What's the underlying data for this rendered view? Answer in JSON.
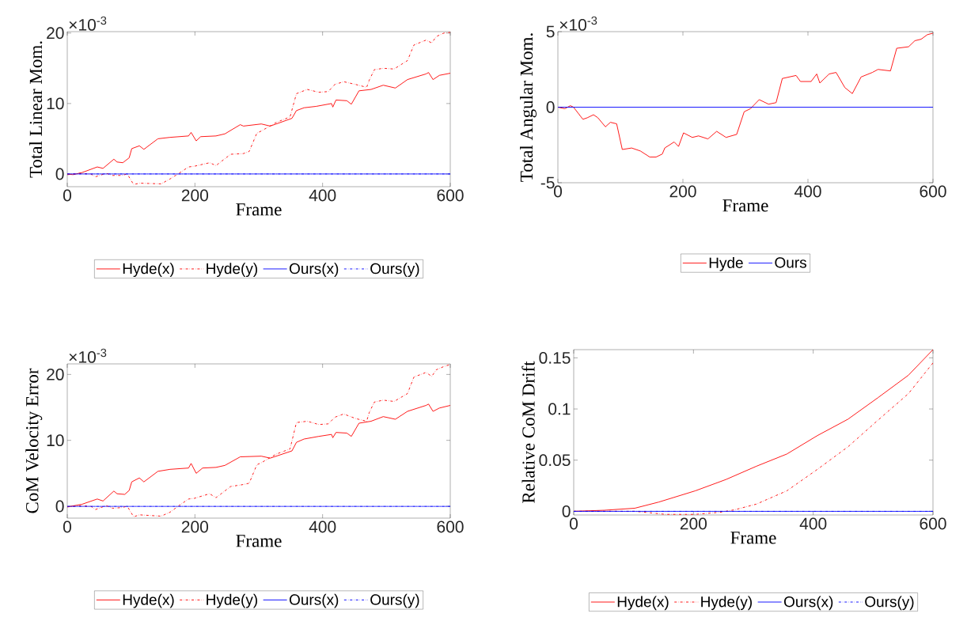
{
  "chart_data": [
    {
      "type": "line",
      "xlabel": "Frame",
      "ylabel": "Total Linear Mom.",
      "annotations": [
        "×10$^{-3}$"
      ],
      "xlim": [
        0,
        600
      ],
      "xticks": [
        0,
        200,
        400,
        600
      ],
      "ylim": [
        -1.8,
        20.2
      ],
      "yticks": [
        0,
        10,
        20
      ],
      "legend": "bottom",
      "grid": false,
      "marker": "none",
      "series": [
        {
          "name": "Hyde(x)",
          "color": "#ff0000",
          "line_style": "solid",
          "x": [
            0,
            9,
            23,
            47,
            56,
            73,
            78,
            87,
            97,
            101,
            113,
            120,
            142,
            161,
            190,
            194,
            202,
            209,
            233,
            247,
            271,
            276,
            304,
            318,
            352,
            359,
            371,
            390,
            414,
            416,
            421,
            438,
            445,
            457,
            476,
            495,
            514,
            533,
            562,
            566,
            573,
            583,
            600
          ],
          "values": [
            0,
            -0.1,
            0.2,
            1.0,
            0.8,
            2.1,
            1.7,
            1.6,
            2.3,
            3.6,
            4.0,
            3.5,
            5.0,
            5.2,
            5.4,
            5.9,
            4.7,
            5.3,
            5.4,
            5.7,
            7.0,
            6.8,
            7.1,
            6.8,
            7.9,
            9.0,
            9.4,
            9.6,
            10.0,
            9.5,
            10.5,
            10.4,
            9.9,
            11.8,
            12.0,
            12.6,
            12.2,
            13.4,
            14.2,
            14.4,
            13.4,
            14.0,
            14.3
          ]
        },
        {
          "name": "Hyde(y)",
          "color": "#ff0000",
          "line_style": "dashdot",
          "x": [
            0,
            18,
            37,
            44,
            61,
            71,
            85,
            94,
            104,
            113,
            147,
            161,
            175,
            190,
            199,
            223,
            233,
            256,
            276,
            285,
            297,
            304,
            327,
            349,
            359,
            376,
            394,
            409,
            419,
            433,
            452,
            469,
            473,
            481,
            495,
            512,
            533,
            543,
            562,
            571,
            578,
            590,
            600
          ],
          "values": [
            -0.1,
            0.1,
            0.0,
            -0.4,
            0.1,
            -0.2,
            -0.2,
            0.0,
            -1.5,
            -1.3,
            -1.4,
            -0.7,
            0.1,
            1.0,
            1.1,
            1.6,
            1.2,
            2.8,
            2.9,
            3.2,
            5.8,
            6.1,
            7.3,
            8.1,
            11.4,
            12.0,
            11.6,
            11.7,
            12.7,
            13.1,
            12.7,
            12.3,
            13.3,
            14.8,
            15.0,
            14.9,
            16.1,
            18.3,
            19.0,
            18.6,
            19.5,
            20.0,
            20.1
          ]
        },
        {
          "name": "Ours(x)",
          "color": "#0000ff",
          "line_style": "solid",
          "x": [
            0,
            600
          ],
          "values": [
            0,
            0
          ]
        },
        {
          "name": "Ours(y)",
          "color": "#0000ff",
          "line_style": "dashdot",
          "x": [
            0,
            600
          ],
          "values": [
            0,
            0
          ]
        }
      ]
    },
    {
      "type": "line",
      "xlabel": "Frame",
      "ylabel": "Total Angular Mom.",
      "annotations": [
        "×10$^{-3}$"
      ],
      "xlim": [
        0,
        600
      ],
      "xticks": [
        0,
        200,
        400,
        600
      ],
      "ylim": [
        -5,
        5
      ],
      "yticks": [
        -5,
        0,
        5
      ],
      "legend": "bottom",
      "grid": false,
      "marker": "none",
      "series": [
        {
          "name": "Hyde",
          "color": "#ff0000",
          "line_style": "solid",
          "x": [
            0,
            11,
            20,
            25,
            40,
            47,
            57,
            64,
            76,
            84,
            94,
            103,
            118,
            132,
            147,
            157,
            167,
            171,
            186,
            193,
            201,
            215,
            225,
            240,
            254,
            269,
            286,
            298,
            308,
            322,
            337,
            349,
            359,
            381,
            388,
            405,
            414,
            419,
            434,
            445,
            459,
            471,
            485,
            503,
            512,
            532,
            542,
            561,
            571,
            581,
            591,
            600
          ],
          "values": [
            0,
            -0.1,
            0.1,
            0,
            -0.8,
            -0.7,
            -0.5,
            -0.7,
            -1.3,
            -1.0,
            -1.1,
            -2.8,
            -2.7,
            -2.9,
            -3.3,
            -3.3,
            -3.1,
            -2.7,
            -2.3,
            -2.6,
            -1.7,
            -2.0,
            -1.9,
            -2.1,
            -1.6,
            -2.0,
            -1.8,
            -0.3,
            -0.1,
            0.5,
            0.2,
            0.3,
            1.9,
            2.1,
            1.7,
            1.7,
            2.2,
            1.6,
            2.2,
            2.3,
            1.3,
            0.9,
            2.0,
            2.3,
            2.5,
            2.4,
            3.9,
            4.0,
            4.4,
            4.5,
            4.8,
            4.9
          ]
        },
        {
          "name": "Ours",
          "color": "#0000ff",
          "line_style": "solid",
          "x": [
            0,
            600
          ],
          "values": [
            0,
            0
          ]
        }
      ]
    },
    {
      "type": "line",
      "xlabel": "Frame",
      "ylabel": "CoM Velocity Error",
      "annotations": [
        "×10$^{-3}$"
      ],
      "xlim": [
        0,
        600
      ],
      "xticks": [
        0,
        200,
        400,
        600
      ],
      "ylim": [
        -1.8,
        21.6
      ],
      "yticks": [
        0,
        10,
        20
      ],
      "legend": "bottom",
      "grid": false,
      "marker": "none",
      "series": [
        {
          "name": "Hyde(x)",
          "color": "#ff0000",
          "line_style": "solid",
          "x": [
            0,
            23,
            47,
            56,
            73,
            78,
            90,
            97,
            101,
            113,
            120,
            142,
            161,
            190,
            194,
            202,
            212,
            233,
            247,
            271,
            304,
            318,
            352,
            359,
            371,
            394,
            414,
            416,
            421,
            438,
            445,
            457,
            476,
            495,
            514,
            533,
            562,
            566,
            573,
            583,
            600
          ],
          "values": [
            -0.1,
            0.3,
            1.1,
            0.8,
            2.3,
            1.9,
            1.8,
            2.4,
            3.7,
            4.3,
            3.7,
            5.3,
            5.6,
            5.8,
            6.5,
            5.0,
            5.8,
            5.9,
            6.2,
            7.5,
            7.6,
            7.3,
            8.4,
            9.7,
            10.2,
            10.6,
            10.9,
            10.4,
            11.2,
            11.1,
            10.6,
            12.6,
            12.9,
            13.6,
            13.2,
            14.4,
            15.3,
            15.5,
            14.4,
            14.9,
            15.3
          ]
        },
        {
          "name": "Hyde(y)",
          "color": "#ff0000",
          "line_style": "dashdot",
          "x": [
            0,
            18,
            37,
            44,
            61,
            71,
            85,
            94,
            104,
            113,
            147,
            161,
            175,
            190,
            199,
            223,
            233,
            256,
            276,
            285,
            297,
            304,
            327,
            349,
            359,
            376,
            394,
            409,
            419,
            433,
            452,
            469,
            473,
            481,
            495,
            512,
            533,
            543,
            562,
            571,
            578,
            590,
            600
          ],
          "values": [
            -0.1,
            0.1,
            0.0,
            -0.5,
            0.1,
            -0.3,
            -0.2,
            0.0,
            -1.6,
            -1.3,
            -1.5,
            -0.9,
            0.1,
            1.1,
            1.2,
            1.9,
            1.3,
            3.0,
            3.3,
            3.5,
            6.3,
            6.6,
            7.9,
            8.7,
            12.7,
            12.9,
            12.4,
            12.5,
            13.5,
            14.0,
            13.3,
            12.9,
            14.2,
            15.8,
            16.1,
            15.9,
            17.1,
            19.6,
            20.3,
            19.7,
            20.7,
            21.2,
            21.5
          ]
        },
        {
          "name": "Ours(x)",
          "color": "#0000ff",
          "line_style": "solid",
          "x": [
            0,
            600
          ],
          "values": [
            0,
            0
          ]
        },
        {
          "name": "Ours(y)",
          "color": "#0000ff",
          "line_style": "dashdot",
          "x": [
            0,
            600
          ],
          "values": [
            0,
            0
          ]
        }
      ]
    },
    {
      "type": "line",
      "xlabel": "Frame",
      "ylabel": "Relative CoM Drift",
      "xlim": [
        0,
        600
      ],
      "xticks": [
        0,
        200,
        400,
        600
      ],
      "ylim": [
        -0.0036,
        0.158
      ],
      "yticks": [
        0,
        0.05,
        0.1,
        0.15
      ],
      "legend": "bottom",
      "grid": false,
      "marker": "none",
      "series": [
        {
          "name": "Hyde(x)",
          "color": "#ff0000",
          "line_style": "solid",
          "x": [
            0,
            51,
            102,
            142,
            203,
            254,
            305,
            356,
            407,
            458,
            508,
            559,
            600
          ],
          "values": [
            0,
            0.001,
            0.003,
            0.009,
            0.02,
            0.031,
            0.044,
            0.056,
            0.074,
            0.09,
            0.111,
            0.133,
            0.158
          ]
        },
        {
          "name": "Hyde(y)",
          "color": "#ff0000",
          "line_style": "dashdot",
          "x": [
            0,
            102,
            153,
            203,
            244,
            269,
            305,
            356,
            407,
            458,
            508,
            559,
            600
          ],
          "values": [
            0,
            0,
            -0.003,
            -0.003,
            -0.001,
            0.0015,
            0.007,
            0.02,
            0.041,
            0.063,
            0.089,
            0.115,
            0.145
          ]
        },
        {
          "name": "Ours(x)",
          "color": "#0000ff",
          "line_style": "solid",
          "x": [
            0,
            600
          ],
          "values": [
            0,
            0
          ]
        },
        {
          "name": "Ours(y)",
          "color": "#0000ff",
          "line_style": "dashdot",
          "x": [
            0,
            600
          ],
          "values": [
            0,
            0
          ]
        }
      ]
    }
  ]
}
